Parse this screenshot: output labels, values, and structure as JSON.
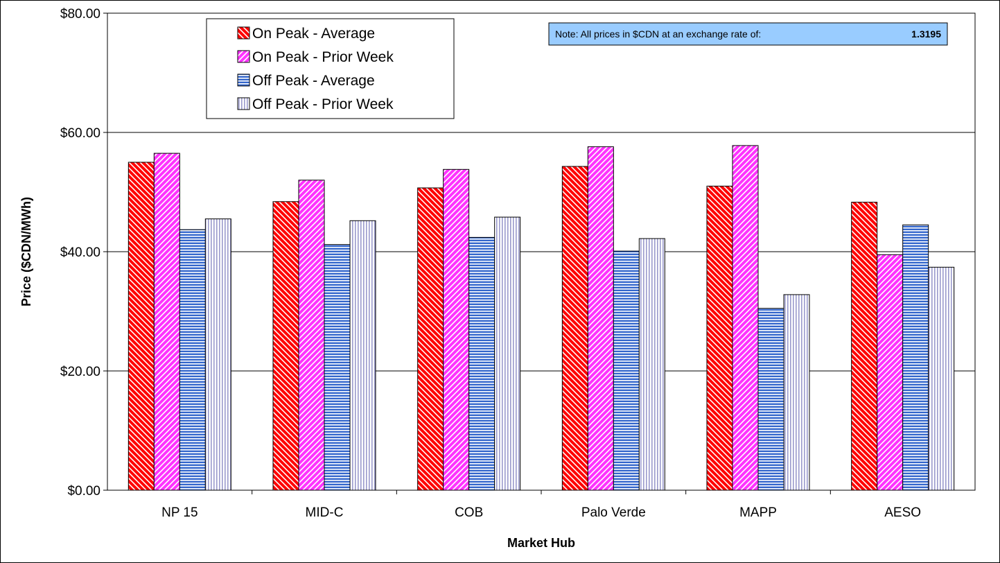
{
  "chart_data": {
    "type": "bar",
    "title": "",
    "xlabel": "Market Hub",
    "ylabel": "Price ($CDN/MWh)",
    "ylim": [
      0,
      80
    ],
    "yticks": [
      "$0.00",
      "$20.00",
      "$40.00",
      "$60.00",
      "$80.00"
    ],
    "grid": true,
    "legend_position": "top-left",
    "categories": [
      "NP 15",
      "MID-C",
      "COB",
      "Palo Verde",
      "MAPP",
      "AESO"
    ],
    "series": [
      {
        "name": "On Peak - Average",
        "values": [
          55.0,
          48.4,
          50.7,
          54.3,
          51.0,
          48.3
        ],
        "color": "#ff0000",
        "pattern": "diagonal-down"
      },
      {
        "name": "On Peak - Prior Week",
        "values": [
          56.5,
          52.0,
          53.8,
          57.6,
          57.8,
          39.5
        ],
        "color": "#ff33ff",
        "pattern": "diagonal-up"
      },
      {
        "name": "Off Peak - Average",
        "values": [
          43.7,
          41.2,
          42.4,
          40.1,
          30.5,
          44.5
        ],
        "color": "#3366cc",
        "pattern": "horizontal"
      },
      {
        "name": "Off Peak - Prior Week",
        "values": [
          45.5,
          45.2,
          45.8,
          42.2,
          32.8,
          37.4
        ],
        "color": "#9999cc",
        "pattern": "vertical"
      }
    ],
    "annotations": {
      "note_text": "Note: All prices in $CDN at an exchange rate of:",
      "exchange_rate": "1.3195",
      "note_background": "#99ccff"
    }
  }
}
